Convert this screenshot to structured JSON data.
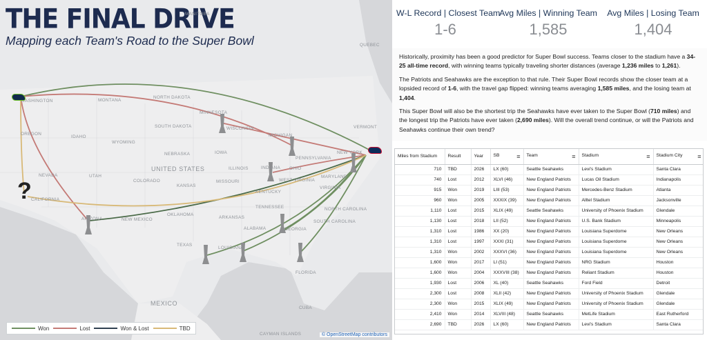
{
  "map": {
    "title": "THE FINAL DRIVE",
    "subtitle": "Mapping each Team's Road to the Super Bowl",
    "question_mark": "?",
    "labels": {
      "manitoba": "MANITOBA",
      "quebec": "QUEBEC",
      "washington": "WASHINGTON",
      "montana": "MONTANA",
      "north_dakota": "NORTH DAKOTA",
      "minnesota": "MINNESOTA",
      "south_dakota": "SOUTH DAKOTA",
      "wisconsin": "WISCONSIN",
      "michigan": "MICHIGAN",
      "vermont": "VERMONT",
      "oregon": "OREGON",
      "idaho": "IDAHO",
      "wyoming": "WYOMING",
      "iowa": "IOWA",
      "nebraska": "NEBRASKA",
      "pennsylvania": "PENNSYLVANIA",
      "new_york": "NEW YORK",
      "united_states": "UNITED STATES",
      "illinois": "ILLINOIS",
      "indiana": "INDIANA",
      "ohio": "OHIO",
      "nevada": "NEVADA",
      "utah": "UTAH",
      "colorado": "COLORADO",
      "kansas": "KANSAS",
      "missouri": "MISSOURI",
      "west_virginia": "WEST VIRGINIA",
      "maryland": "MARYLAND",
      "kentucky": "KENTUCKY",
      "virginia": "VIRGINIA",
      "california": "CALIFORNIA",
      "tennessee": "TENNESSEE",
      "north_carolina": "NORTH CAROLINA",
      "oklahoma": "OKLAHOMA",
      "arizona": "ARIZONA",
      "new_mexico": "NEW MEXICO",
      "arkansas": "ARKANSAS",
      "south_carolina": "SOUTH CAROLINA",
      "alabama": "ALABAMA",
      "georgia": "GEORGIA",
      "texas": "TEXAS",
      "louisiana": "LOUISIANA",
      "florida": "FLORIDA",
      "mexico": "MEXICO",
      "cuba": "CUBA",
      "cayman_islands": "CAYMAN ISLANDS"
    },
    "legend": [
      {
        "label": "Won",
        "color": "#6f8f61"
      },
      {
        "label": "Lost",
        "color": "#c47a76"
      },
      {
        "label": "Won & Lost",
        "color": "#2f3f4f"
      },
      {
        "label": "TBD",
        "color": "#d8b977"
      }
    ],
    "attribution": "© OpenStreetMap contributors"
  },
  "kpis": [
    {
      "label": "W-L Record | Closest Team",
      "value": "1-6"
    },
    {
      "label": "Avg Miles | Winning Team",
      "value": "1,585"
    },
    {
      "label": "Avg Miles | Losing Team",
      "value": "1,404"
    }
  ],
  "narrative": {
    "p1_a": "Historically, proximity has been a good predictor for Super Bowl success. Teams closer to the stadium have a ",
    "p1_b": "34-25 all-time record",
    "p1_c": ", with winning teams typically traveling shorter distances (average ",
    "p1_d": "1,236 miles",
    "p1_e": " to ",
    "p1_f": "1,261",
    "p1_g": ").",
    "p2_a": "The Patriots and Seahawks are the exception to that rule. Their Super Bowl records show the closer team at a lopsided record of ",
    "p2_b": "1-6",
    "p2_c": ", with the travel gap flipped: winning teams averaging ",
    "p2_d": "1,585 miles",
    "p2_e": ", and the losing team at ",
    "p2_f": "1,404",
    "p2_g": ".",
    "p3_a": "This Super Bowl will also be the shortest trip the Seahawks have ever taken to the Super Bowl (",
    "p3_b": "710 miles",
    "p3_c": ") and the longest trip the Patriots have ever taken (",
    "p3_d": "2,690 miles",
    "p3_e": "). Will the overall trend continue, or will the Patriots and Seahawks continue their own trend?"
  },
  "table": {
    "headers": [
      "Miles from Stadium",
      "Result",
      "Year",
      "SB",
      "Team",
      "Stadium",
      "Stadium City"
    ],
    "menu_icon": "≡",
    "rows": [
      [
        "710",
        "TBD",
        "2026",
        "LX (60)",
        "Seattle Seahawks",
        "Levi's Stadium",
        "Santa Clara"
      ],
      [
        "740",
        "Lost",
        "2012",
        "XLVI (46)",
        "New England Patriots",
        "Lucas Oil Stadium",
        "Indianapolis"
      ],
      [
        "915",
        "Won",
        "2019",
        "LIII (53)",
        "New England Patriots",
        "Mercedes-Benz Stadium",
        "Atlanta"
      ],
      [
        "960",
        "Won",
        "2005",
        "XXXIX (39)",
        "New England Patriots",
        "Alltel Stadium",
        "Jacksonville"
      ],
      [
        "1,110",
        "Lost",
        "2015",
        "XLIX (49)",
        "Seattle Seahawks",
        "University of Phoenix Stadium",
        "Glendale"
      ],
      [
        "1,130",
        "Lost",
        "2018",
        "LII (52)",
        "New England Patriots",
        "U.S. Bank Stadium",
        "Minneapolis"
      ],
      [
        "1,310",
        "Lost",
        "1986",
        "XX (20)",
        "New England Patriots",
        "Louisiana Superdome",
        "New Orleans"
      ],
      [
        "1,310",
        "Lost",
        "1997",
        "XXXI (31)",
        "New England Patriots",
        "Louisiana Superdome",
        "New Orleans"
      ],
      [
        "1,310",
        "Won",
        "2002",
        "XXXVI (36)",
        "New England Patriots",
        "Louisiana Superdome",
        "New Orleans"
      ],
      [
        "1,600",
        "Won",
        "2017",
        "LI (51)",
        "New England Patriots",
        "NRG Stadium",
        "Houston"
      ],
      [
        "1,600",
        "Won",
        "2004",
        "XXXVIII (38)",
        "New England Patriots",
        "Reliant Stadium",
        "Houston"
      ],
      [
        "1,930",
        "Lost",
        "2006",
        "XL (40)",
        "Seattle Seahawks",
        "Ford Field",
        "Detroit"
      ],
      [
        "2,300",
        "Lost",
        "2008",
        "XLII (42)",
        "New England Patriots",
        "University of Phoenix Stadium",
        "Glendale"
      ],
      [
        "2,300",
        "Won",
        "2015",
        "XLIX (49)",
        "New England Patriots",
        "University of Phoenix Stadium",
        "Glendale"
      ],
      [
        "2,410",
        "Won",
        "2014",
        "XLVIII (48)",
        "Seattle Seahawks",
        "MetLife Stadium",
        "East Rutherford"
      ],
      [
        "2,690",
        "TBD",
        "2026",
        "LX (60)",
        "New England Patriots",
        "Levi's Stadium",
        "Santa Clara"
      ]
    ]
  }
}
